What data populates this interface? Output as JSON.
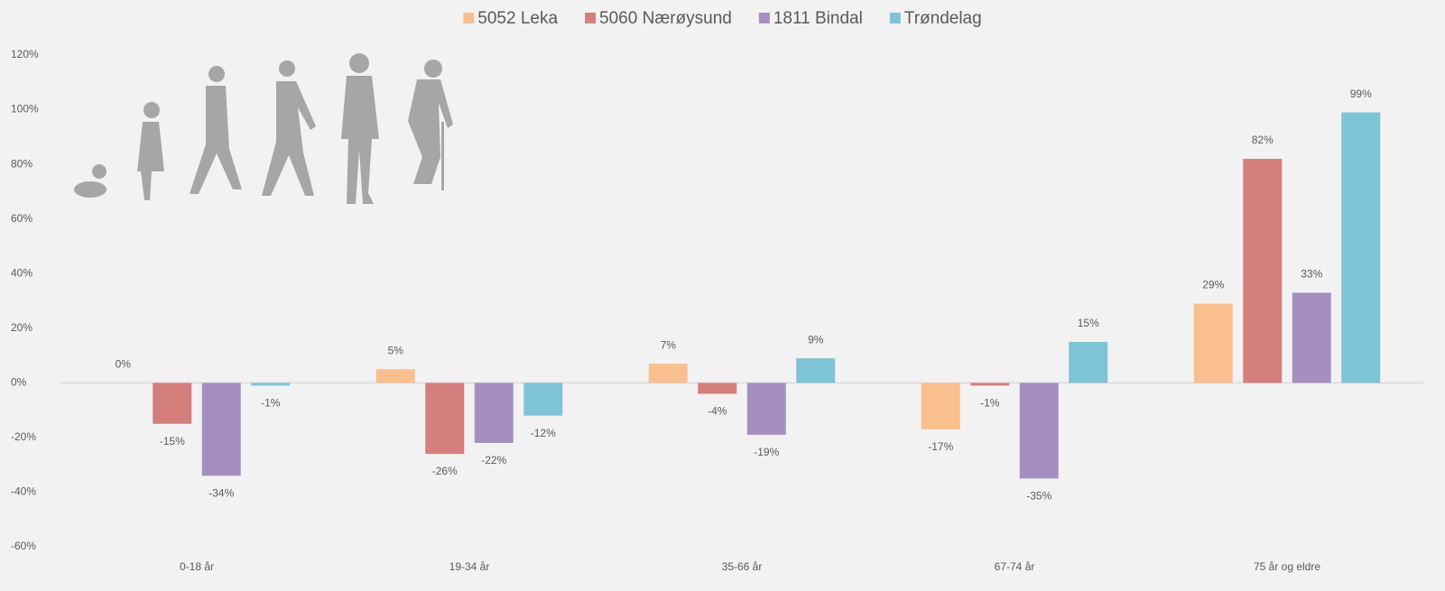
{
  "chart_data": {
    "type": "bar",
    "categories": [
      "0-18 år",
      "19-34 år",
      "35-66 år",
      "67-74 år",
      "75 år og eldre"
    ],
    "series": [
      {
        "name": "5052 Leka",
        "color": "#f9bf8f",
        "values": [
          0,
          5,
          7,
          -17,
          29
        ],
        "value_labels": [
          "0%",
          "5%",
          "7%",
          "-17%",
          "29%"
        ]
      },
      {
        "name": "5060 Nærøysund",
        "color": "#d47e7e",
        "values": [
          -15,
          -26,
          -4,
          -1,
          82
        ],
        "value_labels": [
          "-15%",
          "-26%",
          "-4%",
          "-1%",
          "82%"
        ]
      },
      {
        "name": "1811 Bindal",
        "color": "#a58fc1",
        "values": [
          -34,
          -22,
          -19,
          -35,
          33
        ],
        "value_labels": [
          "-34%",
          "-22%",
          "-19%",
          "-35%",
          "33%"
        ]
      },
      {
        "name": "Trøndelag",
        "color": "#7fc4d6",
        "values": [
          -1,
          -12,
          9,
          15,
          99
        ],
        "value_labels": [
          "-1%",
          "-12%",
          "9%",
          "15%",
          "99%"
        ]
      }
    ],
    "ylim": [
      -60,
      120
    ],
    "yticks": [
      {
        "value": -60,
        "label": "-60%"
      },
      {
        "value": -40,
        "label": "-40%"
      },
      {
        "value": -20,
        "label": "-20%"
      },
      {
        "value": 0,
        "label": "0%"
      },
      {
        "value": 20,
        "label": "20%"
      },
      {
        "value": 40,
        "label": "40%"
      },
      {
        "value": 60,
        "label": "60%"
      },
      {
        "value": 80,
        "label": "80%"
      },
      {
        "value": 100,
        "label": "100%"
      },
      {
        "value": 120,
        "label": "120%"
      }
    ],
    "legend": "top"
  }
}
